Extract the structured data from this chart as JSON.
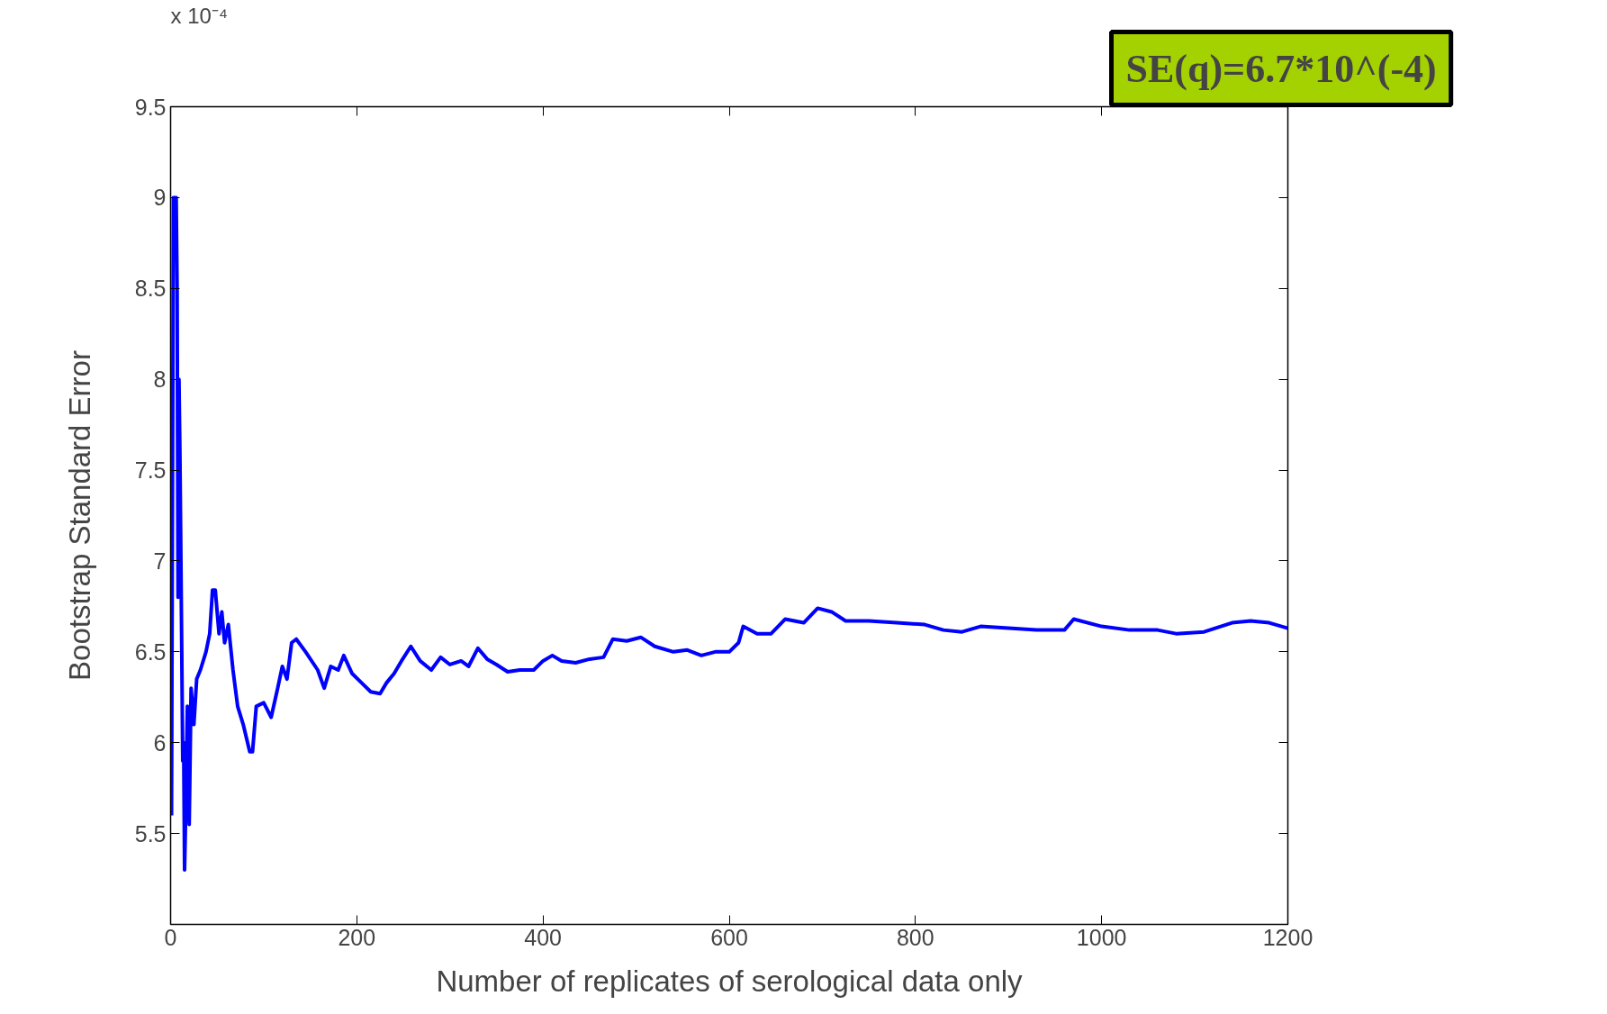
{
  "chart_data": {
    "type": "line",
    "xlabel": "Number of replicates of serological data only",
    "ylabel": "Bootstrap Standard Error",
    "annotations": [
      "x 10⁻⁴",
      "SE(q)=6.7*10^(-4)"
    ],
    "xlim": [
      0,
      1200
    ],
    "xticks": [
      0,
      200,
      400,
      600,
      800,
      1000,
      1200
    ],
    "ylim": [
      5,
      9.5
    ],
    "yticks": [
      5.5,
      6,
      6.5,
      7,
      7.5,
      8,
      8.5,
      9,
      9.5
    ],
    "grid": false,
    "marker": "none",
    "line_style": "solid",
    "series": [
      {
        "color": "#0000ff",
        "x": [
          1,
          3,
          6,
          7,
          8,
          9,
          10,
          12,
          13,
          14,
          15,
          16,
          18,
          20,
          22,
          25,
          28,
          32,
          38,
          42,
          45,
          48,
          52,
          55,
          58,
          62,
          67,
          72,
          78,
          85,
          88,
          92,
          100,
          108,
          115,
          120,
          125,
          130,
          135,
          145,
          158,
          165,
          172,
          180,
          186,
          195,
          205,
          215,
          225,
          232,
          240,
          248,
          258,
          268,
          280,
          290,
          300,
          312,
          320,
          330,
          340,
          350,
          362,
          375,
          390,
          400,
          410,
          420,
          435,
          450,
          465,
          475,
          490,
          505,
          520,
          540,
          555,
          570,
          585,
          600,
          610,
          615,
          630,
          645,
          660,
          680,
          695,
          710,
          725,
          750,
          780,
          810,
          830,
          850,
          870,
          900,
          930,
          960,
          970,
          1000,
          1030,
          1060,
          1080,
          1110,
          1140,
          1160,
          1180,
          1200
        ],
        "values": [
          5.6,
          9.0,
          9.0,
          8.5,
          6.8,
          8.0,
          7.6,
          6.5,
          5.9,
          6.0,
          5.3,
          5.55,
          6.2,
          5.55,
          6.3,
          6.1,
          6.35,
          6.4,
          6.5,
          6.6,
          6.84,
          6.84,
          6.6,
          6.72,
          6.55,
          6.65,
          6.4,
          6.2,
          6.1,
          5.95,
          5.95,
          6.2,
          6.22,
          6.14,
          6.3,
          6.42,
          6.35,
          6.55,
          6.57,
          6.5,
          6.4,
          6.3,
          6.42,
          6.4,
          6.48,
          6.38,
          6.33,
          6.28,
          6.27,
          6.33,
          6.38,
          6.45,
          6.53,
          6.45,
          6.4,
          6.47,
          6.43,
          6.45,
          6.42,
          6.52,
          6.46,
          6.43,
          6.39,
          6.4,
          6.4,
          6.45,
          6.48,
          6.45,
          6.44,
          6.46,
          6.47,
          6.57,
          6.56,
          6.58,
          6.53,
          6.5,
          6.51,
          6.48,
          6.5,
          6.5,
          6.55,
          6.64,
          6.6,
          6.6,
          6.68,
          6.66,
          6.74,
          6.72,
          6.67,
          6.67,
          6.66,
          6.65,
          6.62,
          6.61,
          6.64,
          6.63,
          6.62,
          6.62,
          6.68,
          6.64,
          6.62,
          6.62,
          6.6,
          6.61,
          6.66,
          6.67,
          6.66,
          6.63
        ]
      }
    ]
  }
}
